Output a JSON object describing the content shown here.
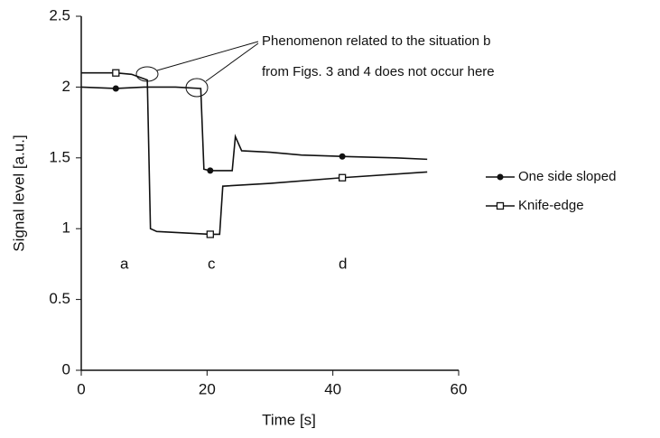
{
  "chart_data": {
    "type": "line",
    "xlabel": "Time [s]",
    "ylabel": "Signal level [a.u.]",
    "xlim": [
      0,
      60
    ],
    "xticks": [
      0,
      20,
      40,
      60
    ],
    "ylim": [
      0,
      2.5
    ],
    "yticks": [
      0,
      0.5,
      1,
      1.5,
      2,
      2.5
    ],
    "grid": false,
    "legend": "right",
    "annotations": [
      "Phenomenon related to the situation b",
      "from Figs. 3 and 4 does not occur here",
      "a",
      "c",
      "d"
    ],
    "series": [
      {
        "name": "One side sloped",
        "color": "#111111",
        "marker": "circle",
        "x": [
          0,
          5.5,
          10,
          15,
          19,
          19.5,
          20.5,
          24,
          24.5,
          25.5,
          30,
          35,
          41.5,
          50,
          55
        ],
        "values": [
          2.0,
          1.99,
          2.0,
          2.0,
          1.99,
          1.42,
          1.41,
          1.41,
          1.65,
          1.55,
          1.54,
          1.52,
          1.51,
          1.5,
          1.49
        ]
      },
      {
        "name": "Knife-edge",
        "color": "#111111",
        "marker": "square",
        "x": [
          0,
          5.5,
          8,
          10.5,
          11,
          12,
          20.5,
          22,
          22.5,
          30,
          41.5,
          55
        ],
        "values": [
          2.1,
          2.1,
          2.09,
          2.05,
          1.0,
          0.98,
          0.96,
          0.96,
          1.3,
          1.32,
          1.36,
          1.4
        ]
      }
    ]
  }
}
